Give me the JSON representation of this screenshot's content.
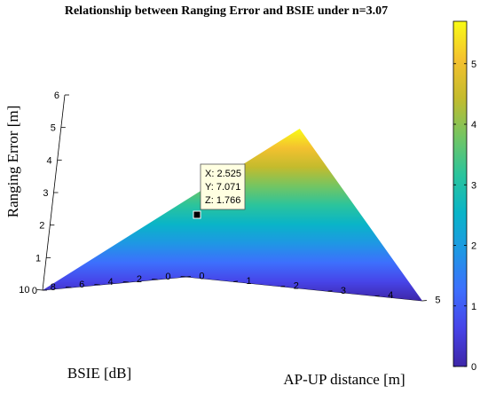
{
  "chart_data": {
    "type": "surface3d",
    "title": "Relationship between Ranging Error and BSIE under n=3.07",
    "xlabel": "AP-UP distance [m]",
    "ylabel": "BSIE [dB]",
    "zlabel": "Ranging Error [m]",
    "xlim": [
      0,
      5
    ],
    "ylim": [
      0,
      10
    ],
    "zlim": [
      0,
      6
    ],
    "x_ticks": [
      "0",
      "1",
      "2",
      "3",
      "4",
      "5"
    ],
    "y_ticks": [
      "0",
      "2",
      "4",
      "6",
      "8",
      "10"
    ],
    "z_ticks": [
      "0",
      "1",
      "2",
      "3",
      "4",
      "5",
      "6"
    ],
    "surface_corners": [
      {
        "x": 0,
        "y": 0,
        "z": 0
      },
      {
        "x": 5,
        "y": 0,
        "z": 0
      },
      {
        "x": 0,
        "y": 10,
        "z": 0
      },
      {
        "x": 5,
        "y": 10,
        "z": 5.7
      }
    ],
    "colormap": "parula",
    "colorbar": {
      "range": [
        0,
        5.7
      ],
      "ticks": [
        "0",
        "1",
        "2",
        "3",
        "4",
        "5"
      ],
      "colors": [
        "#3e26a8",
        "#4744e8",
        "#3d6ffd",
        "#1f97e4",
        "#09b4c8",
        "#2bc49c",
        "#74c562",
        "#c4bb2d",
        "#f4c12f",
        "#f9fb15"
      ]
    },
    "datatip": {
      "point": {
        "x": 2.525,
        "y": 7.071,
        "z": 1.766
      },
      "lines": [
        "X: 2.525",
        "Y: 7.071",
        "Z: 1.766"
      ]
    }
  }
}
